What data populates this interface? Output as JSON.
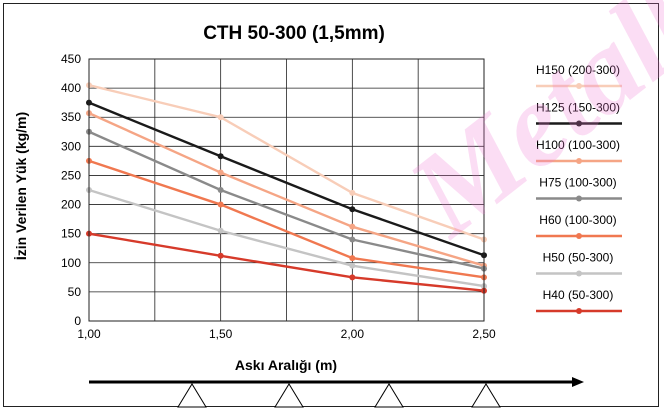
{
  "chart_data": {
    "type": "line",
    "title": "CTH 50-300 (1,5mm)",
    "xlabel": "Askı Aralığı (m)",
    "ylabel": "İzin Verilen Yük (kg/m)",
    "x": [
      1.0,
      1.5,
      2.0,
      2.5
    ],
    "x_tick_labels": [
      "1,00",
      "1,50",
      "2,00",
      "2,50"
    ],
    "xlim": [
      1.0,
      2.5
    ],
    "ylim": [
      0,
      450
    ],
    "y_ticks": [
      0,
      50,
      100,
      150,
      200,
      250,
      300,
      350,
      400,
      450
    ],
    "grid": true,
    "legend_position": "right",
    "series": [
      {
        "name": "H150 (200-300)",
        "color": "#f8cdb8",
        "values": [
          405,
          350,
          220,
          140
        ]
      },
      {
        "name": "H125 (150-300)",
        "color": "#1a1a1a",
        "values": [
          375,
          283,
          192,
          113
        ]
      },
      {
        "name": "H100 (100-300)",
        "color": "#f5a585",
        "values": [
          357,
          255,
          162,
          95
        ]
      },
      {
        "name": "H75 (100-300)",
        "color": "#8a8a8a",
        "values": [
          325,
          225,
          140,
          90
        ]
      },
      {
        "name": "H60 (100-300)",
        "color": "#f07850",
        "values": [
          275,
          200,
          108,
          75
        ]
      },
      {
        "name": "H50 (50-300)",
        "color": "#c4c4c4",
        "values": [
          225,
          155,
          95,
          60
        ]
      },
      {
        "name": "H40 (50-300)",
        "color": "#d63a2a",
        "values": [
          150,
          112,
          75,
          52
        ]
      }
    ],
    "supports_count": 4
  },
  "watermark": "Metalkon"
}
